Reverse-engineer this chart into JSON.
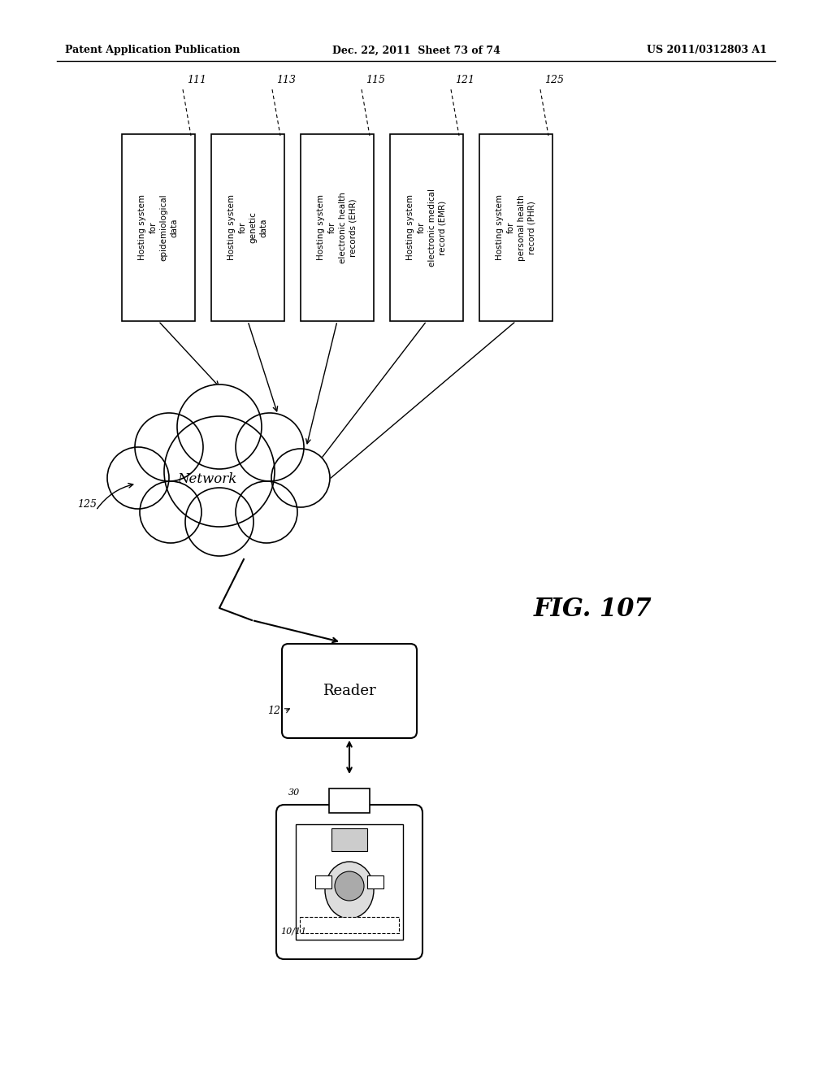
{
  "header_left": "Patent Application Publication",
  "header_mid": "Dec. 22, 2011  Sheet 73 of 74",
  "header_right": "US 2011/0312803 A1",
  "fig_label": "FIG. 107",
  "bg_color": "#ffffff"
}
